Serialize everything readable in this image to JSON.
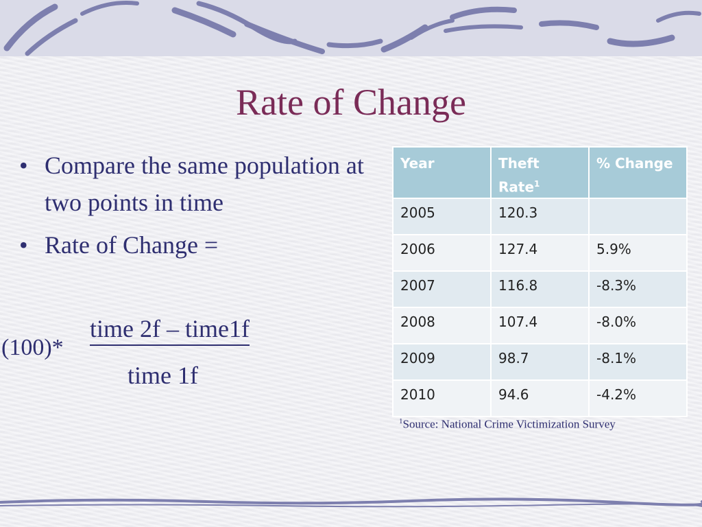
{
  "slide": {
    "title": "Rate of Change",
    "bullets": [
      "Compare the same population at two points in time",
      "Rate of Change ="
    ],
    "bullet_glyph": "•",
    "formula": {
      "prefix": "(100)*",
      "numerator": "time 2f – time1f",
      "denominator": "time 1f"
    }
  },
  "table": {
    "headers": {
      "year": "Year",
      "theft_rate": "Theft Rate",
      "theft_rate_sup": "1",
      "pct_change": "% Change"
    },
    "rows": [
      {
        "year": "2005",
        "rate": "120.3",
        "change": ""
      },
      {
        "year": "2006",
        "rate": "127.4",
        "change": "5.9%"
      },
      {
        "year": "2007",
        "rate": "116.8",
        "change": "-8.3%"
      },
      {
        "year": "2008",
        "rate": "107.4",
        "change": "-8.0%"
      },
      {
        "year": "2009",
        "rate": "98.7",
        "change": "-8.1%"
      },
      {
        "year": "2010",
        "rate": "94.6",
        "change": "-4.2%"
      }
    ]
  },
  "footnote": {
    "marker": "1",
    "text": "Source: National Crime Victimization Survey"
  },
  "colors": {
    "title": "#7a2b57",
    "body_text": "#2e2e70",
    "table_header": "#a7cbd8",
    "row_odd": "#e1eaf0",
    "row_even": "#f0f3f6"
  }
}
